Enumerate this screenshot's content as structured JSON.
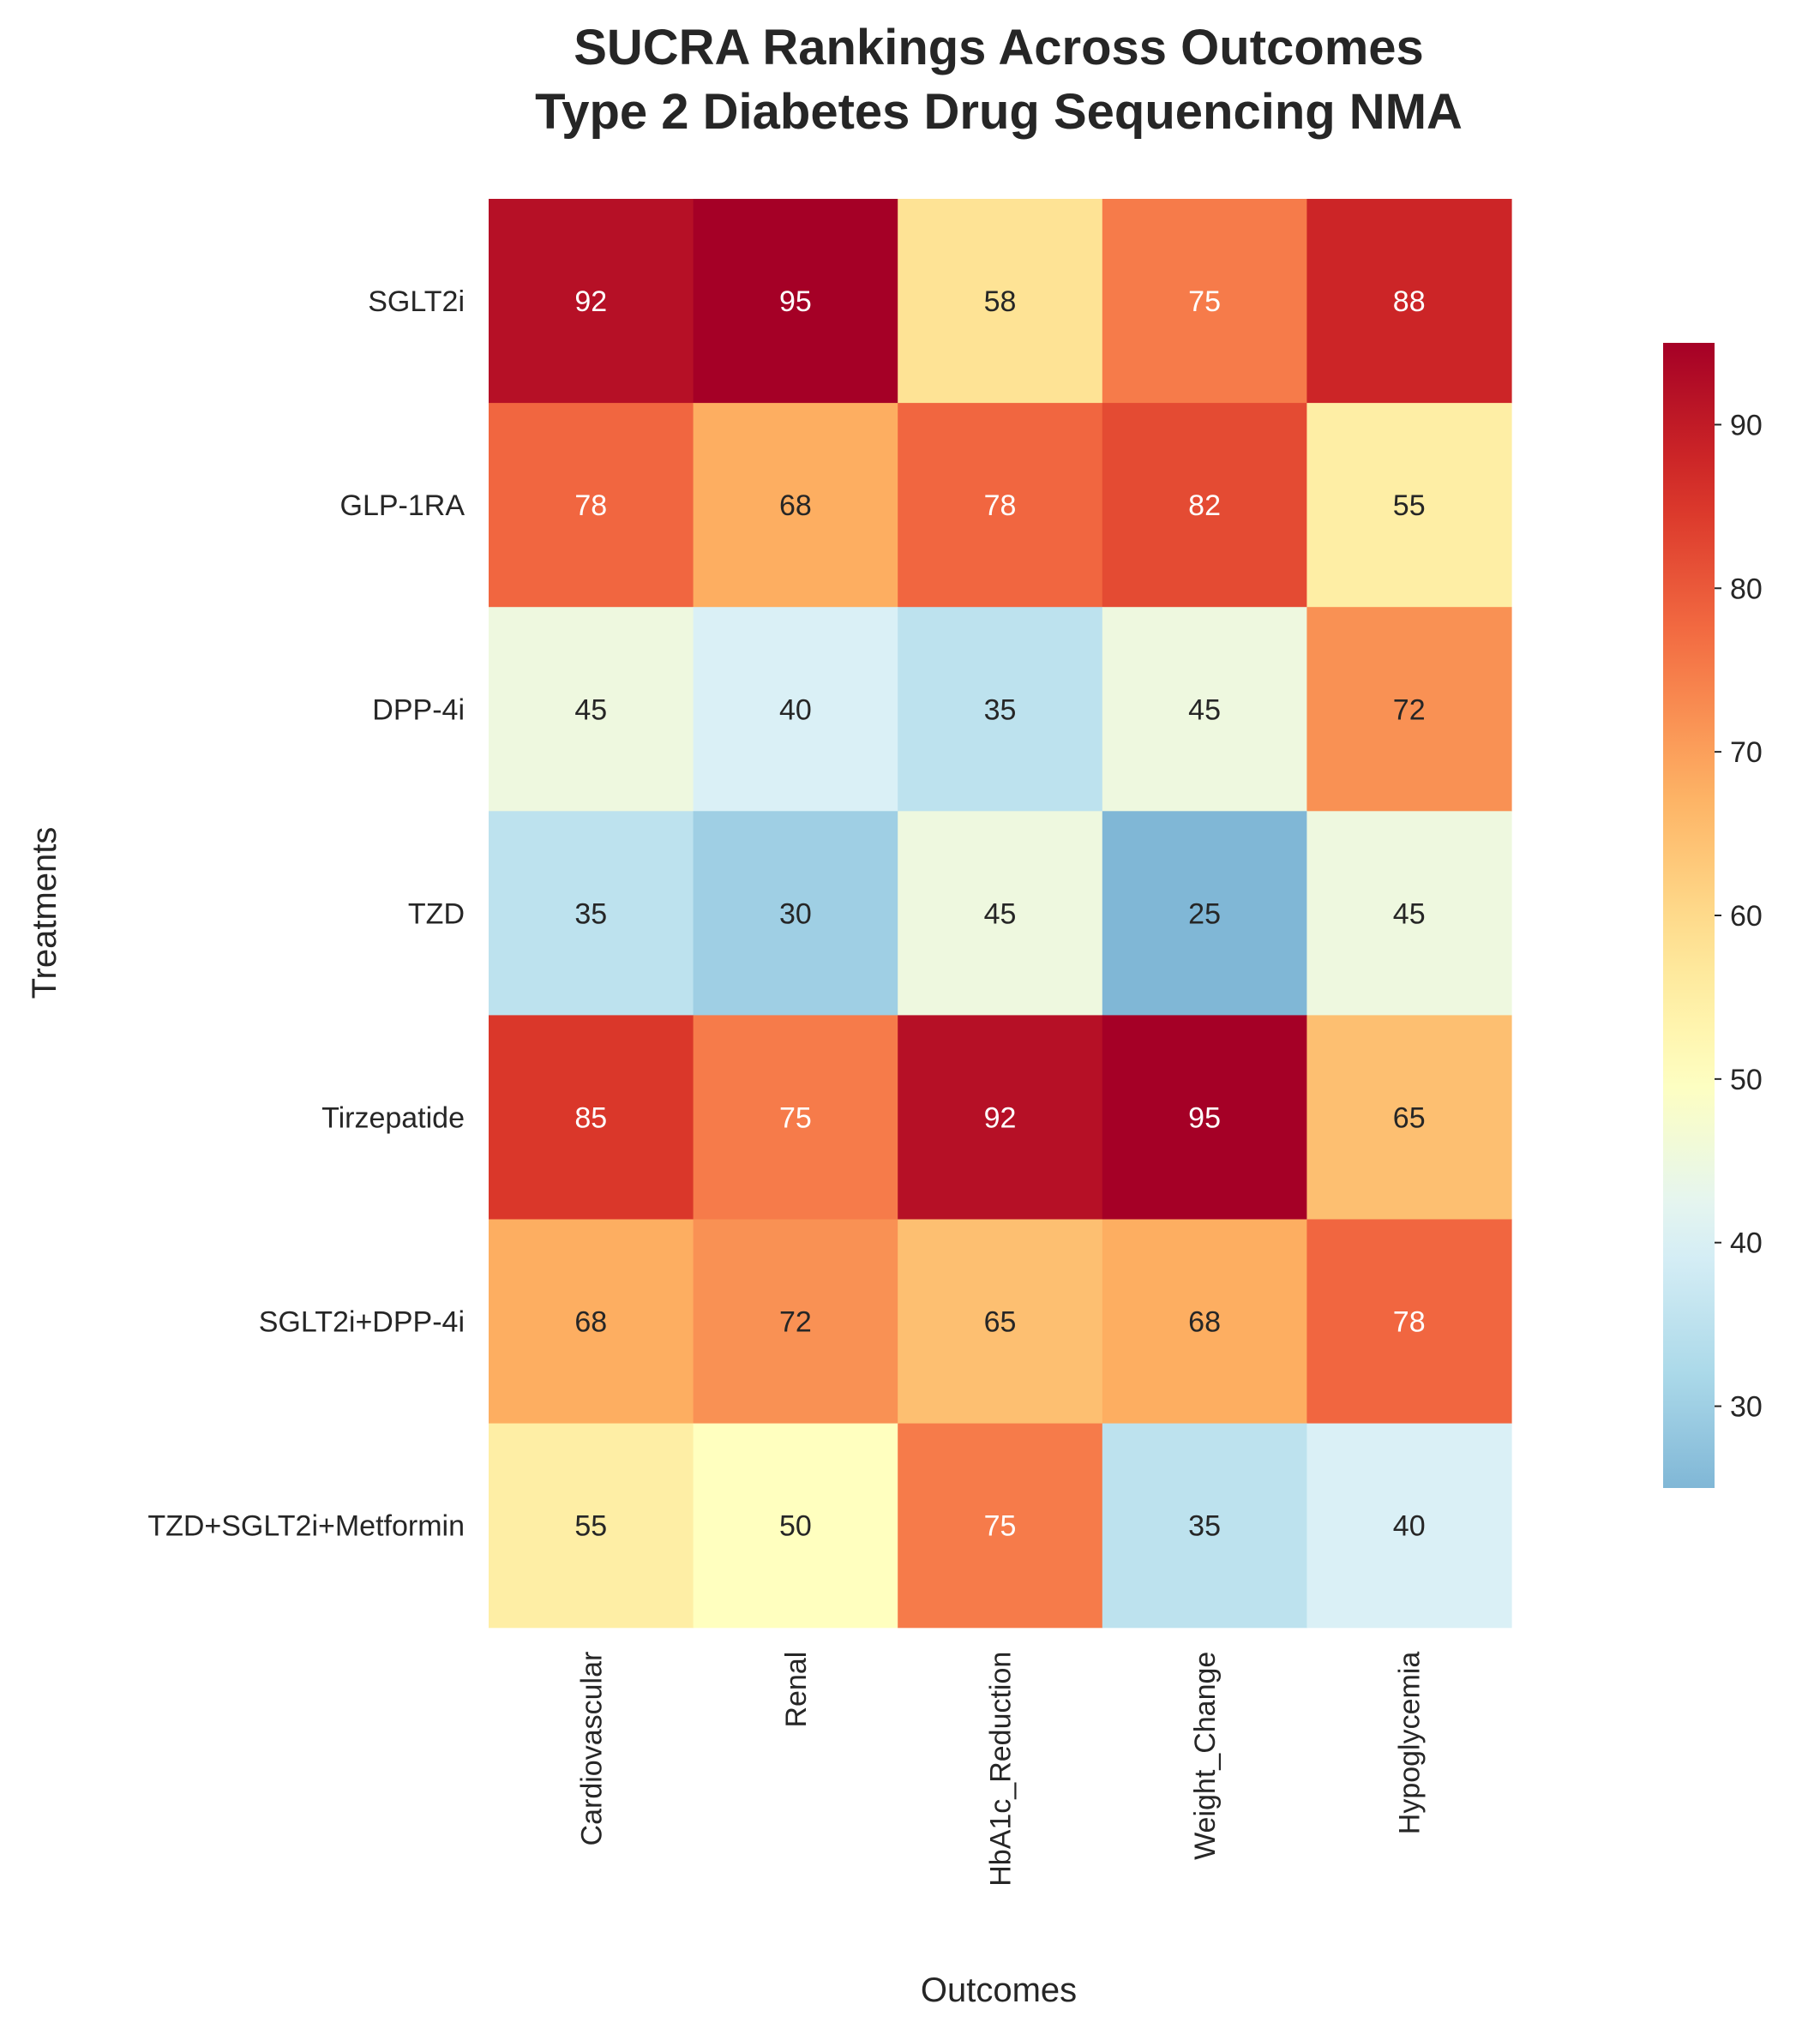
{
  "chart_data": {
    "type": "heatmap",
    "title_lines": [
      "SUCRA Rankings Across Outcomes",
      "Type 2 Diabetes Drug Sequencing NMA"
    ],
    "xlabel": "Outcomes",
    "ylabel": "Treatments",
    "columns": [
      "Cardiovascular",
      "Renal",
      "HbA1c_Reduction",
      "Weight_Change",
      "Hypoglycemia"
    ],
    "rows": [
      "SGLT2i",
      "GLP-1RA",
      "DPP-4i",
      "TZD",
      "Tirzepatide",
      "SGLT2i+DPP-4i",
      "TZD+SGLT2i+Metformin"
    ],
    "values": [
      [
        92,
        95,
        58,
        75,
        88
      ],
      [
        78,
        68,
        78,
        82,
        55
      ],
      [
        45,
        40,
        35,
        45,
        72
      ],
      [
        35,
        30,
        45,
        25,
        45
      ],
      [
        85,
        75,
        92,
        95,
        65
      ],
      [
        68,
        72,
        65,
        68,
        78
      ],
      [
        55,
        50,
        75,
        35,
        40
      ]
    ],
    "colormap": "RdYlBu_r",
    "center": 50,
    "vmin": 25,
    "vmax": 95,
    "colorbar_ticks": [
      30,
      40,
      50,
      60,
      70,
      80,
      90
    ],
    "annotate": true,
    "grid": false
  }
}
